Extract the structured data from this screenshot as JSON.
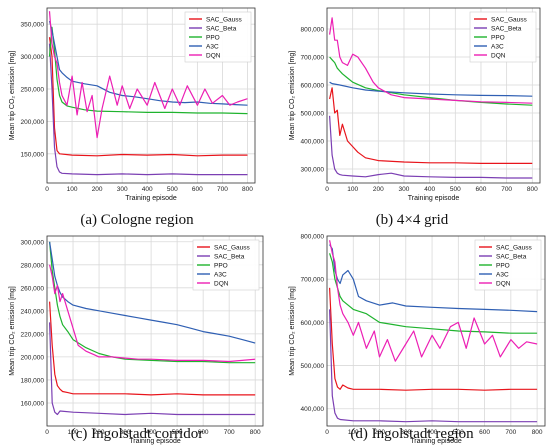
{
  "captions": [
    "(a) Cologne region",
    "(b) 4×4 grid",
    "(c) Ingolstadt corridor",
    "(d) Ingolstadt region"
  ],
  "colors": {
    "SAC_Gauss": "#e8141b",
    "SAC_Beta": "#7b3fb3",
    "PPO": "#1fb32e",
    "A3C": "#2f5fb3",
    "DQN": "#ec1fb4"
  },
  "chart_data": [
    {
      "type": "line",
      "xlabel": "Training episode",
      "ylabel": "Mean trip CO₂ emission [mg]",
      "xlim": [
        0,
        830
      ],
      "ylim": [
        105000,
        375000
      ],
      "xticks": [
        0,
        100,
        200,
        300,
        400,
        500,
        600,
        700,
        800
      ],
      "xtick_labels": [
        "0",
        "100",
        "200",
        "300",
        "400",
        "500",
        "600",
        "700",
        "800"
      ],
      "yticks": [
        150000,
        200000,
        250000,
        300000,
        350000
      ],
      "ytick_labels": [
        "150,000",
        "200,000",
        "250,000",
        "300,000",
        "350,000"
      ],
      "legend": "top-right",
      "series": [
        {
          "name": "SAC_Gauss",
          "x": [
            10,
            20,
            30,
            40,
            50,
            100,
            200,
            300,
            400,
            500,
            600,
            700,
            800
          ],
          "y": [
            330000,
            300000,
            190000,
            155000,
            150000,
            148000,
            147000,
            149000,
            148000,
            149000,
            147000,
            148000,
            148000
          ]
        },
        {
          "name": "SAC_Beta",
          "x": [
            10,
            20,
            30,
            40,
            50,
            60,
            100,
            200,
            300,
            400,
            500,
            600,
            700,
            800
          ],
          "y": [
            320000,
            250000,
            160000,
            130000,
            122000,
            120000,
            119000,
            118000,
            119000,
            118000,
            119000,
            118000,
            118000,
            118000
          ]
        },
        {
          "name": "PPO",
          "x": [
            10,
            20,
            30,
            40,
            50,
            60,
            80,
            100,
            150,
            200,
            300,
            400,
            500,
            600,
            700,
            800
          ],
          "y": [
            300000,
            345000,
            310000,
            265000,
            240000,
            230000,
            224000,
            222000,
            218000,
            216000,
            215000,
            214000,
            214000,
            213000,
            213000,
            212000
          ]
        },
        {
          "name": "A3C",
          "x": [
            10,
            20,
            30,
            40,
            50,
            60,
            80,
            100,
            150,
            200,
            250,
            300,
            350,
            400,
            450,
            500,
            550,
            600,
            650,
            700,
            750,
            800
          ],
          "y": [
            355000,
            340000,
            320000,
            300000,
            280000,
            275000,
            268000,
            262000,
            258000,
            255000,
            245000,
            240000,
            238000,
            235000,
            232000,
            230000,
            229000,
            230000,
            228000,
            227000,
            226000,
            225000
          ]
        },
        {
          "name": "DQN",
          "x": [
            10,
            20,
            30,
            40,
            50,
            60,
            80,
            100,
            120,
            140,
            160,
            180,
            200,
            220,
            250,
            280,
            300,
            330,
            360,
            400,
            430,
            470,
            500,
            530,
            560,
            600,
            630,
            660,
            700,
            730,
            760,
            800
          ],
          "y": [
            370000,
            320000,
            300000,
            290000,
            260000,
            240000,
            225000,
            270000,
            210000,
            260000,
            215000,
            240000,
            175000,
            220000,
            270000,
            225000,
            255000,
            220000,
            250000,
            225000,
            260000,
            220000,
            250000,
            225000,
            255000,
            225000,
            250000,
            228000,
            240000,
            225000,
            230000,
            235000
          ]
        }
      ]
    },
    {
      "type": "line",
      "xlabel": "Training episode",
      "ylabel": "Mean trip CO₂ emission [mg]",
      "xlim": [
        0,
        830
      ],
      "ylim": [
        250000,
        875000
      ],
      "xticks": [
        0,
        100,
        200,
        300,
        400,
        500,
        600,
        700,
        800
      ],
      "xtick_labels": [
        "0",
        "100",
        "200",
        "300",
        "400",
        "500",
        "600",
        "700",
        "800"
      ],
      "yticks": [
        300000,
        400000,
        500000,
        600000,
        700000,
        800000
      ],
      "ytick_labels": [
        "300,000",
        "400,000",
        "500,000",
        "600,000",
        "700,000",
        "800,000"
      ],
      "legend": "top-right",
      "series": [
        {
          "name": "SAC_Gauss",
          "x": [
            10,
            20,
            30,
            40,
            50,
            60,
            80,
            100,
            120,
            150,
            200,
            300,
            400,
            500,
            600,
            700,
            800
          ],
          "y": [
            550000,
            590000,
            500000,
            510000,
            420000,
            460000,
            400000,
            380000,
            360000,
            340000,
            330000,
            325000,
            322000,
            322000,
            320000,
            320000,
            320000
          ]
        },
        {
          "name": "SAC_Beta",
          "x": [
            10,
            20,
            30,
            40,
            50,
            60,
            100,
            150,
            200,
            250,
            300,
            400,
            500,
            600,
            700,
            800
          ],
          "y": [
            490000,
            350000,
            300000,
            285000,
            280000,
            278000,
            275000,
            272000,
            280000,
            285000,
            275000,
            272000,
            270000,
            270000,
            268000,
            268000
          ]
        },
        {
          "name": "PPO",
          "x": [
            10,
            20,
            30,
            40,
            50,
            60,
            80,
            100,
            150,
            200,
            300,
            400,
            500,
            600,
            700,
            800
          ],
          "y": [
            700000,
            690000,
            680000,
            660000,
            650000,
            640000,
            625000,
            610000,
            590000,
            580000,
            565000,
            555000,
            545000,
            538000,
            532000,
            528000
          ]
        },
        {
          "name": "A3C",
          "x": [
            10,
            20,
            50,
            100,
            150,
            200,
            300,
            400,
            500,
            600,
            700,
            800
          ],
          "y": [
            610000,
            605000,
            600000,
            590000,
            582000,
            578000,
            572000,
            568000,
            565000,
            563000,
            562000,
            560000
          ]
        },
        {
          "name": "DQN",
          "x": [
            10,
            20,
            30,
            40,
            50,
            60,
            80,
            100,
            120,
            150,
            180,
            200,
            250,
            300,
            400,
            500,
            600,
            700,
            800
          ],
          "y": [
            780000,
            840000,
            760000,
            760000,
            700000,
            680000,
            670000,
            710000,
            700000,
            660000,
            610000,
            590000,
            565000,
            555000,
            550000,
            545000,
            540000,
            538000,
            535000
          ]
        }
      ]
    },
    {
      "type": "line",
      "xlabel": "Training episode",
      "ylabel": "Mean trip CO₂ emission [mg]",
      "xlim": [
        0,
        830
      ],
      "ylim": [
        140000,
        305000
      ],
      "xticks": [
        0,
        100,
        200,
        300,
        400,
        500,
        600,
        700,
        800
      ],
      "xtick_labels": [
        "0",
        "100",
        "200",
        "300",
        "400",
        "500",
        "600",
        "700",
        "800"
      ],
      "yticks": [
        160000,
        180000,
        200000,
        220000,
        240000,
        260000,
        280000,
        300000
      ],
      "ytick_labels": [
        "160,000",
        "180,000",
        "200,000",
        "220,000",
        "240,000",
        "260,000",
        "280,000",
        "300,000"
      ],
      "legend": "top-right",
      "series": [
        {
          "name": "SAC_Gauss",
          "x": [
            10,
            20,
            30,
            40,
            50,
            60,
            80,
            100,
            200,
            300,
            400,
            500,
            600,
            700,
            800
          ],
          "y": [
            248000,
            210000,
            185000,
            175000,
            172000,
            170000,
            169000,
            168000,
            168000,
            168000,
            167000,
            168000,
            167000,
            167000,
            167000
          ]
        },
        {
          "name": "SAC_Beta",
          "x": [
            10,
            20,
            30,
            40,
            50,
            100,
            200,
            300,
            400,
            500,
            600,
            700,
            800
          ],
          "y": [
            230000,
            160000,
            152000,
            150000,
            153000,
            152000,
            151000,
            150000,
            151000,
            150000,
            150000,
            150000,
            150000
          ]
        },
        {
          "name": "PPO",
          "x": [
            10,
            20,
            30,
            40,
            50,
            60,
            80,
            100,
            150,
            200,
            250,
            300,
            400,
            500,
            600,
            700,
            800
          ],
          "y": [
            300000,
            275000,
            260000,
            245000,
            235000,
            228000,
            222000,
            215000,
            208000,
            203000,
            200000,
            198000,
            197000,
            196000,
            196000,
            195000,
            195000
          ]
        },
        {
          "name": "A3C",
          "x": [
            10,
            20,
            30,
            40,
            50,
            60,
            80,
            100,
            150,
            200,
            250,
            300,
            350,
            400,
            450,
            500,
            550,
            600,
            650,
            700,
            750,
            800
          ],
          "y": [
            300000,
            285000,
            270000,
            262000,
            256000,
            252000,
            248000,
            245000,
            242000,
            240000,
            238000,
            236000,
            234000,
            232000,
            230000,
            228000,
            225000,
            222000,
            220000,
            218000,
            215000,
            212000
          ]
        },
        {
          "name": "DQN",
          "x": [
            10,
            20,
            30,
            40,
            50,
            60,
            80,
            100,
            120,
            150,
            180,
            200,
            250,
            300,
            350,
            400,
            500,
            600,
            700,
            800
          ],
          "y": [
            280000,
            270000,
            255000,
            262000,
            248000,
            255000,
            240000,
            225000,
            210000,
            205000,
            202000,
            200000,
            200000,
            199000,
            198000,
            198000,
            197000,
            197000,
            196000,
            198000
          ]
        }
      ]
    },
    {
      "type": "line",
      "xlabel": "Training episode",
      "ylabel": "Mean trip CO₂ emission [mg]",
      "xlim": [
        0,
        830
      ],
      "ylim": [
        360000,
        800000
      ],
      "xticks": [
        0,
        100,
        200,
        300,
        400,
        500,
        600,
        700,
        800
      ],
      "xtick_labels": [
        "0",
        "100",
        "200",
        "300",
        "400",
        "500",
        "600",
        "700",
        "800"
      ],
      "yticks": [
        400000,
        500000,
        600000,
        700000,
        800000
      ],
      "ytick_labels": [
        "400,000",
        "500,000",
        "600,000",
        "700,000",
        "800,000"
      ],
      "legend": "top-right",
      "series": [
        {
          "name": "SAC_Gauss",
          "x": [
            10,
            20,
            30,
            40,
            50,
            60,
            80,
            100,
            200,
            300,
            400,
            500,
            600,
            700,
            800
          ],
          "y": [
            680000,
            550000,
            470000,
            450000,
            445000,
            455000,
            448000,
            445000,
            445000,
            443000,
            445000,
            445000,
            443000,
            445000,
            445000
          ]
        },
        {
          "name": "SAC_Beta",
          "x": [
            10,
            20,
            30,
            40,
            50,
            100,
            200,
            300,
            400,
            500,
            600,
            700,
            800
          ],
          "y": [
            630000,
            430000,
            390000,
            378000,
            375000,
            372000,
            372000,
            370000,
            372000,
            370000,
            370000,
            370000,
            370000
          ]
        },
        {
          "name": "PPO",
          "x": [
            10,
            20,
            30,
            40,
            50,
            60,
            80,
            100,
            150,
            200,
            250,
            300,
            400,
            500,
            600,
            700,
            800
          ],
          "y": [
            760000,
            740000,
            700000,
            680000,
            660000,
            650000,
            640000,
            630000,
            620000,
            600000,
            595000,
            590000,
            585000,
            580000,
            578000,
            575000,
            575000
          ]
        },
        {
          "name": "A3C",
          "x": [
            10,
            20,
            30,
            40,
            50,
            60,
            80,
            100,
            120,
            150,
            200,
            250,
            300,
            400,
            500,
            600,
            700,
            800
          ],
          "y": [
            780000,
            770000,
            720000,
            700000,
            690000,
            710000,
            720000,
            700000,
            660000,
            650000,
            640000,
            645000,
            638000,
            635000,
            632000,
            630000,
            628000,
            625000
          ]
        },
        {
          "name": "DQN",
          "x": [
            10,
            20,
            30,
            40,
            50,
            60,
            80,
            100,
            120,
            150,
            180,
            200,
            230,
            260,
            300,
            330,
            360,
            400,
            430,
            470,
            500,
            530,
            560,
            600,
            630,
            660,
            700,
            730,
            760,
            800
          ],
          "y": [
            790000,
            760000,
            740000,
            680000,
            640000,
            620000,
            600000,
            570000,
            600000,
            540000,
            580000,
            520000,
            560000,
            510000,
            550000,
            580000,
            520000,
            570000,
            540000,
            590000,
            600000,
            540000,
            610000,
            550000,
            570000,
            520000,
            560000,
            540000,
            555000,
            550000
          ]
        }
      ]
    }
  ]
}
